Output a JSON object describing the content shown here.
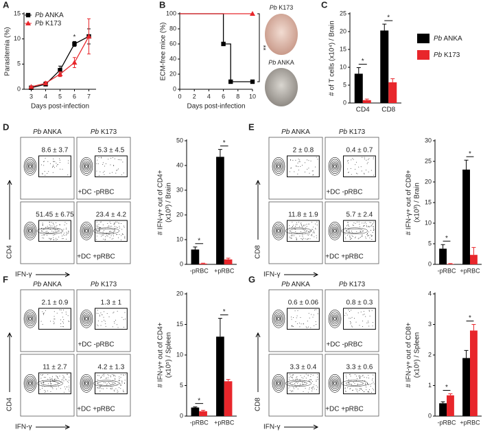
{
  "panel_labels": [
    "A",
    "B",
    "C",
    "D",
    "E",
    "F",
    "G"
  ],
  "brain_images": [
    "Pb K173",
    "Pb ANKA"
  ],
  "chart_data": [
    {
      "type": "line",
      "ylabel": "Parasitemia (%)",
      "xlabel": "Days post-infection",
      "x": [
        3,
        4,
        5,
        6,
        7
      ],
      "xlim": [
        2.5,
        7.5
      ],
      "xticks": [
        3,
        4,
        5,
        6,
        7
      ],
      "ylim": [
        0,
        15
      ],
      "yticks": [
        0,
        5,
        10,
        15
      ],
      "legend": "top-left",
      "annotation": "*",
      "series": [
        {
          "name": "Pb ANKA",
          "color": "#000000",
          "marker": "square",
          "values": [
            0.3,
            1.0,
            3.8,
            9.0,
            10.5
          ],
          "errors": [
            0.1,
            0.3,
            0.8,
            0.5,
            1.5
          ]
        },
        {
          "name": "Pb K173",
          "color": "#e8262b",
          "marker": "triangle",
          "values": [
            0.5,
            1.2,
            3.0,
            5.3,
            10.5
          ],
          "errors": [
            0.1,
            0.3,
            0.5,
            1.0,
            3.5
          ]
        }
      ]
    },
    {
      "type": "step",
      "ylabel": "ECM-free mice (%)",
      "xlabel": "Days post-infection",
      "xlim": [
        0,
        10
      ],
      "xticks": [
        0,
        2,
        4,
        6,
        8,
        10
      ],
      "ylim": [
        0,
        100
      ],
      "yticks": [
        0,
        20,
        40,
        60,
        80,
        100
      ],
      "annotation": "**",
      "series": [
        {
          "color": "#000000",
          "marker": "square",
          "x": [
            0,
            6,
            7,
            10
          ],
          "values": [
            100,
            60,
            10,
            10
          ]
        },
        {
          "color": "#e8262b",
          "marker": "triangle",
          "x": [
            0,
            10
          ],
          "values": [
            100,
            100
          ]
        }
      ]
    },
    {
      "type": "bar",
      "ylabel": "# of T cells (x10⁴) / Brain",
      "categories": [
        "CD4",
        "CD8"
      ],
      "ylim": [
        0,
        25
      ],
      "yticks": [
        0,
        5,
        10,
        15,
        20,
        25
      ],
      "legend": "right",
      "significance": [
        "*",
        "*"
      ],
      "series": [
        {
          "name": "Pb ANKA",
          "color": "#000000",
          "values": [
            8.2,
            20.3
          ],
          "errors": [
            1.7,
            1.8
          ]
        },
        {
          "name": "Pb K173",
          "color": "#e8262b",
          "values": [
            0.8,
            5.8
          ],
          "errors": [
            0.3,
            1.0
          ]
        }
      ]
    },
    {
      "type": "bar",
      "ylabel": [
        "# IFN-γ+ out of CD4+",
        "(x10³) / Brain"
      ],
      "categories": [
        "-pRBC",
        "+pRBC"
      ],
      "ylim": [
        0,
        50
      ],
      "yticks": [
        0,
        10,
        20,
        30,
        40,
        50
      ],
      "significance": [
        "*",
        "*"
      ],
      "series": [
        {
          "color": "#000000",
          "values": [
            6.0,
            43.5
          ],
          "errors": [
            1.0,
            3.0
          ]
        },
        {
          "color": "#e8262b",
          "values": [
            0.3,
            2.0
          ],
          "errors": [
            0.2,
            0.5
          ]
        }
      ]
    },
    {
      "type": "bar",
      "ylabel": [
        "# IFN-γ+ out of CD8+",
        "(x10³) / Brain"
      ],
      "categories": [
        "-pRBC",
        "+pRBC"
      ],
      "ylim": [
        0,
        30
      ],
      "yticks": [
        0,
        5,
        10,
        15,
        20,
        25,
        30
      ],
      "significance": [
        "*",
        "*"
      ],
      "series": [
        {
          "color": "#000000",
          "values": [
            3.8,
            23.0
          ],
          "errors": [
            1.0,
            2.3
          ]
        },
        {
          "color": "#e8262b",
          "values": [
            0.1,
            2.3
          ],
          "errors": [
            0.1,
            1.8
          ]
        }
      ]
    },
    {
      "type": "bar",
      "ylabel": [
        "# IFN-γ+ out of CD4+",
        "(x10⁵) / Spleen"
      ],
      "categories": [
        "-pRBC",
        "+pRBC"
      ],
      "ylim": [
        0,
        20
      ],
      "yticks": [
        0,
        5,
        10,
        15,
        20
      ],
      "significance": [
        "*",
        "*"
      ],
      "series": [
        {
          "color": "#000000",
          "values": [
            1.4,
            13.0
          ],
          "errors": [
            0.1,
            3.0
          ]
        },
        {
          "color": "#e8262b",
          "values": [
            0.8,
            5.7
          ],
          "errors": [
            0.15,
            0.3
          ]
        }
      ]
    },
    {
      "type": "bar",
      "ylabel": [
        "# IFN-γ+ out of CD8+",
        "(x10⁵) / Spleen"
      ],
      "categories": [
        "-pRBC",
        "+pRBC"
      ],
      "ylim": [
        0,
        4
      ],
      "yticks": [
        0,
        1,
        2,
        3,
        4
      ],
      "significance": [
        "*",
        "*"
      ],
      "series": [
        {
          "color": "#000000",
          "values": [
            0.42,
            1.9
          ],
          "errors": [
            0.05,
            0.25
          ]
        },
        {
          "color": "#e8262b",
          "values": [
            0.68,
            2.8
          ],
          "errors": [
            0.05,
            0.2
          ]
        }
      ]
    }
  ],
  "flow_panels": [
    {
      "columns": [
        "Pb ANKA",
        "Pb K173"
      ],
      "gates": [
        "8.6 ± 3.7",
        "5.3 ± 4.5",
        "51.45 ± 6.75",
        "23.4 ± 4.2"
      ],
      "conditions": [
        "+DC -pRBC",
        "+DC +pRBC"
      ],
      "y_axis": "CD4",
      "x_axis": "IFN-γ"
    },
    {
      "columns": [
        "Pb ANKA",
        "Pb K173"
      ],
      "gates": [
        "2 ± 0.8",
        "0.4 ± 0.7",
        "11.8 ± 1.9",
        "5.7 ± 2.4"
      ],
      "conditions": [
        "+DC -pRBC",
        "+DC +pRBC"
      ],
      "y_axis": "CD8",
      "x_axis": "IFN-γ"
    },
    {
      "columns": [
        "Pb ANKA",
        "Pb K173"
      ],
      "gates": [
        "2.1 ± 0.9",
        "1.3 ± 1",
        "11 ± 2.7",
        "4.2 ± 1.3"
      ],
      "conditions": [
        "+DC -pRBC",
        "+DC +pRBC"
      ],
      "y_axis": "CD4",
      "x_axis": "IFN-γ"
    },
    {
      "columns": [
        "Pb ANKA",
        "Pb K173"
      ],
      "gates": [
        "0.6 ± 0.06",
        "0.8 ± 0.3",
        "3.3 ± 0.4",
        "3.3 ± 0.6"
      ],
      "conditions": [
        "+DC -pRBC",
        "+DC +pRBC"
      ],
      "y_axis": "CD8",
      "x_axis": "IFN-γ"
    }
  ]
}
